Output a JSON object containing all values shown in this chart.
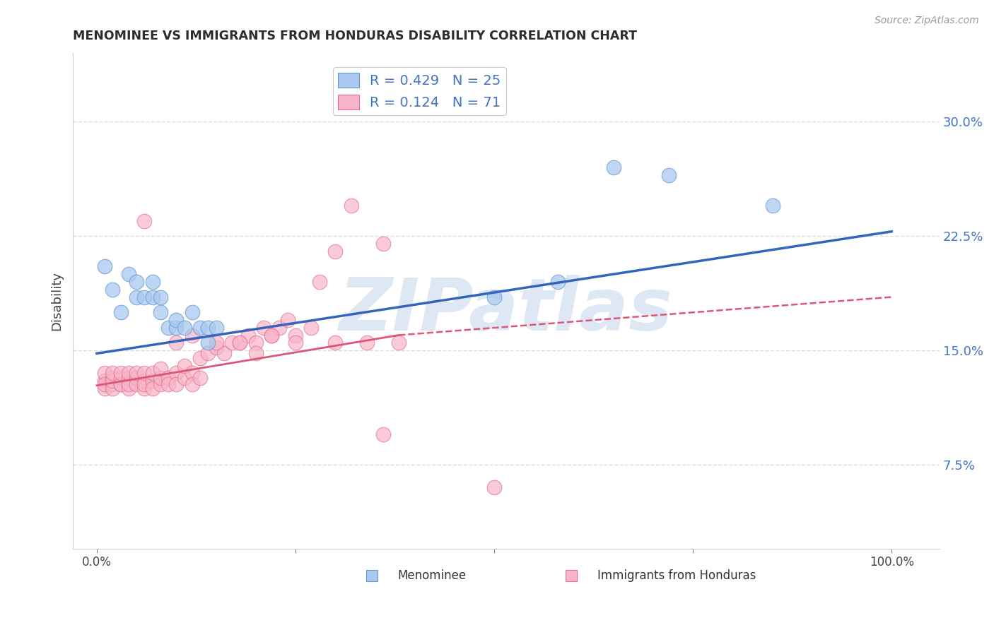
{
  "title": "MENOMINEE VS IMMIGRANTS FROM HONDURAS DISABILITY CORRELATION CHART",
  "source": "Source: ZipAtlas.com",
  "ylabel": "Disability",
  "y_ticks": [
    0.075,
    0.15,
    0.225,
    0.3
  ],
  "y_tick_labels": [
    "7.5%",
    "15.0%",
    "22.5%",
    "30.0%"
  ],
  "xlim": [
    -0.03,
    1.06
  ],
  "ylim": [
    0.02,
    0.345
  ],
  "menominee_color": "#a8c8f0",
  "menominee_edge": "#6699cc",
  "honduras_color": "#f8b4c8",
  "honduras_edge": "#e07090",
  "trend_menominee_color": "#3366bb",
  "trend_honduras_solid_color": "#dd5577",
  "trend_honduras_dashed_color": "#dd5577",
  "watermark": "ZIPatlas",
  "watermark_color": "#c8d8ee",
  "background_color": "#ffffff",
  "grid_color": "#dddddd",
  "menominee_x": [
    0.01,
    0.02,
    0.03,
    0.04,
    0.05,
    0.05,
    0.06,
    0.07,
    0.07,
    0.08,
    0.08,
    0.09,
    0.1,
    0.1,
    0.11,
    0.12,
    0.13,
    0.14,
    0.14,
    0.15,
    0.5,
    0.58,
    0.65,
    0.72,
    0.85
  ],
  "menominee_y": [
    0.205,
    0.19,
    0.175,
    0.2,
    0.185,
    0.195,
    0.185,
    0.195,
    0.185,
    0.175,
    0.185,
    0.165,
    0.165,
    0.17,
    0.165,
    0.175,
    0.165,
    0.165,
    0.155,
    0.165,
    0.185,
    0.195,
    0.27,
    0.265,
    0.245
  ],
  "honduras_x": [
    0.01,
    0.01,
    0.01,
    0.01,
    0.02,
    0.02,
    0.02,
    0.02,
    0.02,
    0.03,
    0.03,
    0.03,
    0.03,
    0.04,
    0.04,
    0.04,
    0.04,
    0.04,
    0.05,
    0.05,
    0.05,
    0.06,
    0.06,
    0.06,
    0.06,
    0.07,
    0.07,
    0.07,
    0.08,
    0.08,
    0.08,
    0.09,
    0.09,
    0.1,
    0.1,
    0.11,
    0.11,
    0.12,
    0.12,
    0.13,
    0.13,
    0.14,
    0.15,
    0.16,
    0.17,
    0.18,
    0.19,
    0.2,
    0.21,
    0.22,
    0.23,
    0.24,
    0.25,
    0.27,
    0.28,
    0.3,
    0.32,
    0.34,
    0.36,
    0.38,
    0.06,
    0.1,
    0.12,
    0.15,
    0.18,
    0.2,
    0.22,
    0.25,
    0.3,
    0.36,
    0.5
  ],
  "honduras_y": [
    0.13,
    0.135,
    0.125,
    0.128,
    0.128,
    0.132,
    0.125,
    0.13,
    0.135,
    0.128,
    0.132,
    0.128,
    0.135,
    0.13,
    0.125,
    0.132,
    0.128,
    0.135,
    0.132,
    0.128,
    0.135,
    0.125,
    0.13,
    0.128,
    0.135,
    0.13,
    0.125,
    0.135,
    0.128,
    0.132,
    0.138,
    0.132,
    0.128,
    0.135,
    0.128,
    0.132,
    0.14,
    0.135,
    0.128,
    0.132,
    0.145,
    0.148,
    0.152,
    0.148,
    0.155,
    0.155,
    0.16,
    0.155,
    0.165,
    0.16,
    0.165,
    0.17,
    0.16,
    0.165,
    0.195,
    0.215,
    0.245,
    0.155,
    0.22,
    0.155,
    0.235,
    0.155,
    0.16,
    0.155,
    0.155,
    0.148,
    0.16,
    0.155,
    0.155,
    0.095,
    0.06
  ],
  "trend_men_x0": 0.0,
  "trend_men_y0": 0.148,
  "trend_men_x1": 1.0,
  "trend_men_y1": 0.228,
  "trend_hon_solid_x0": 0.0,
  "trend_hon_solid_y0": 0.127,
  "trend_hon_solid_x1": 0.38,
  "trend_hon_solid_y1": 0.16,
  "trend_hon_dashed_x0": 0.38,
  "trend_hon_dashed_y0": 0.16,
  "trend_hon_dashed_x1": 1.0,
  "trend_hon_dashed_y1": 0.185
}
